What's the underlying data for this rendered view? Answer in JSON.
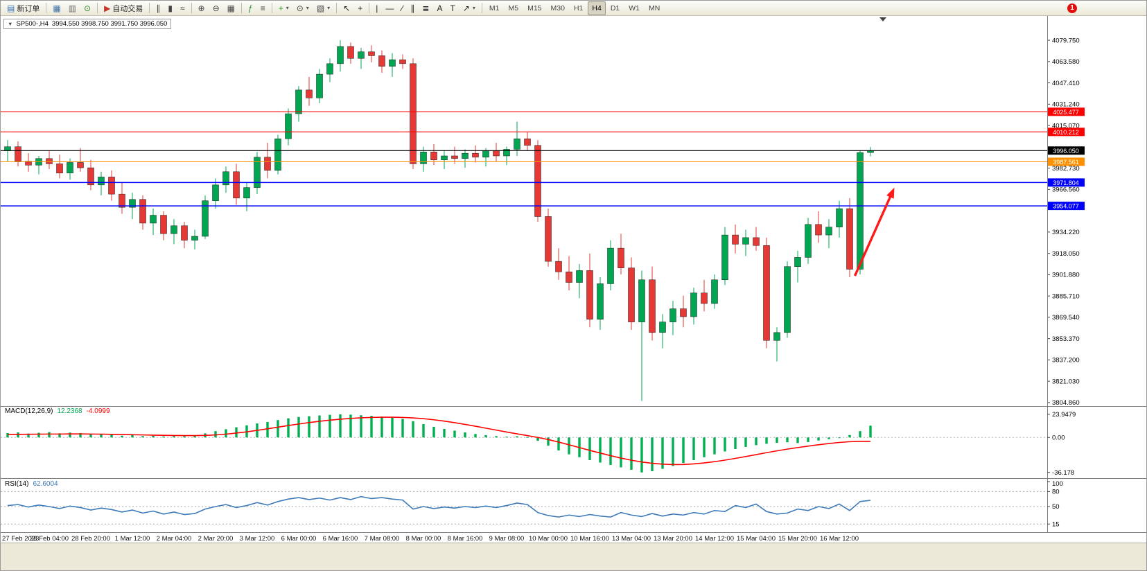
{
  "colors": {
    "bull": "#00a651",
    "bear": "#e53935",
    "macd_hist": "#00b050",
    "macd_signal": "#ff0000",
    "rsi_line": "#3d7ab8",
    "arrow": "#ff1a1a"
  },
  "toolbar": {
    "groups": [
      {
        "items": [
          {
            "name": "new-order-button",
            "glyph": "▤",
            "color": "#2f6fb0",
            "label": "新订单"
          }
        ]
      },
      {
        "items": [
          {
            "name": "charts-window-button",
            "glyph": "▦",
            "color": "#3a6ea5"
          },
          {
            "name": "data-window-button",
            "glyph": "▥",
            "color": "#6b6b6b"
          },
          {
            "name": "strategy-tester-button",
            "glyph": "⊙",
            "color": "#2d8a2d"
          }
        ]
      },
      {
        "items": [
          {
            "name": "autotrading-button",
            "glyph": "▶",
            "color": "#c0392b",
            "label": "自动交易"
          }
        ]
      },
      {
        "items": [
          {
            "name": "bar-chart-type-button",
            "glyph": "∥",
            "color": "#444444"
          },
          {
            "name": "candlestick-chart-type-button",
            "glyph": "▮",
            "color": "#444444"
          },
          {
            "name": "line-chart-type-button",
            "glyph": "≈",
            "color": "#444444"
          }
        ]
      },
      {
        "items": [
          {
            "name": "zoom-in-button",
            "glyph": "⊕",
            "color": "#444444"
          },
          {
            "name": "zoom-out-button",
            "glyph": "⊖",
            "color": "#444444"
          },
          {
            "name": "tile-windows-button",
            "glyph": "▦",
            "color": "#444444"
          }
        ]
      },
      {
        "items": [
          {
            "name": "indicators-button",
            "glyph": "ƒ",
            "color": "#2d8a2d"
          },
          {
            "name": "objects-list-button",
            "glyph": "≡",
            "color": "#444444"
          }
        ]
      },
      {
        "items": [
          {
            "name": "add-indicator-button",
            "glyph": "+",
            "color": "#1e9e1e",
            "caret": true
          },
          {
            "name": "periods-button",
            "glyph": "⊙",
            "color": "#444444",
            "caret": true
          },
          {
            "name": "templates-button",
            "glyph": "▧",
            "color": "#444444",
            "caret": true
          }
        ]
      },
      {
        "items": [
          {
            "name": "cursor-button",
            "glyph": "↖",
            "color": "#222222"
          },
          {
            "name": "crosshair-button",
            "glyph": "+",
            "color": "#222222"
          }
        ]
      },
      {
        "items": [
          {
            "name": "vertical-line-button",
            "glyph": "|",
            "color": "#222222"
          },
          {
            "name": "horizontal-line-button",
            "glyph": "—",
            "color": "#222222"
          },
          {
            "name": "trendline-button",
            "glyph": "∕",
            "color": "#222222"
          },
          {
            "name": "channel-button",
            "glyph": "∥",
            "color": "#222222"
          },
          {
            "name": "fibonacci-button",
            "glyph": "≣",
            "color": "#222222"
          },
          {
            "name": "text-button",
            "glyph": "A",
            "color": "#222222"
          },
          {
            "name": "label-button",
            "glyph": "T",
            "color": "#222222"
          },
          {
            "name": "arrows-button",
            "glyph": "↗",
            "color": "#222222",
            "caret": true
          }
        ]
      }
    ],
    "timeframes": [
      {
        "label": "M1"
      },
      {
        "label": "M5"
      },
      {
        "label": "M15"
      },
      {
        "label": "M30"
      },
      {
        "label": "H1"
      },
      {
        "label": "H4",
        "active": true
      },
      {
        "label": "D1"
      },
      {
        "label": "W1"
      },
      {
        "label": "MN"
      }
    ],
    "notification_count": "1"
  },
  "chart": {
    "expand_glyph": "▼",
    "symbol_title": "SP500-,H4",
    "ohlc_text": "3994.550 3998.750 3991.750 3996.050"
  },
  "indicators": {
    "macd": {
      "name": "MACD(12,26,9)",
      "value_main": "12.2368",
      "value_signal": "-4.0999"
    },
    "rsi": {
      "name": "RSI(14)",
      "value": "62.6004"
    }
  },
  "chart_data": [
    {
      "type": "candlestick",
      "symbol": "SP500-",
      "timeframe": "H4",
      "last_ohlc": {
        "open": 3994.55,
        "high": 3998.75,
        "low": 3991.75,
        "close": 3996.05
      },
      "y_ticks": [
        "4079.750",
        "4063.580",
        "4047.410",
        "4031.240",
        "4015.070",
        "3998.900",
        "3982.730",
        "3966.560",
        "3950.390",
        "3934.220",
        "3918.050",
        "3901.880",
        "3885.710",
        "3869.540",
        "3853.370",
        "3837.200",
        "3821.030",
        "3804.860"
      ],
      "x_labels": [
        "27 Feb 2023",
        "28 Feb 04:00",
        "28 Feb 20:00",
        "1 Mar 12:00",
        "2 Mar 04:00",
        "2 Mar 20:00",
        "3 Mar 12:00",
        "6 Mar 00:00",
        "6 Mar 16:00",
        "7 Mar 08:00",
        "8 Mar 00:00",
        "8 Mar 16:00",
        "9 Mar 08:00",
        "10 Mar 00:00",
        "10 Mar 16:00",
        "13 Mar 04:00",
        "13 Mar 20:00",
        "14 Mar 12:00",
        "15 Mar 04:00",
        "15 Mar 20:00",
        "16 Mar 12:00"
      ],
      "hlines": [
        {
          "price": 4025.477,
          "label": "4025.477",
          "color": "#ff0000"
        },
        {
          "price": 4010.212,
          "label": "4010.212",
          "color": "#ff0000"
        },
        {
          "price": 3996.05,
          "label": "3996.050",
          "color": "#000000"
        },
        {
          "price": 3987.561,
          "label": "3987.561",
          "color": "#ff9000"
        },
        {
          "price": 3971.804,
          "label": "3971.804",
          "color": "#0000ff"
        },
        {
          "price": 3954.077,
          "label": "3954.077",
          "color": "#0000ff"
        }
      ],
      "arrow": {
        "from_index": 81.5,
        "from_price": 3901,
        "to_index": 85.3,
        "to_price": 3968,
        "color": "#ff1a1a"
      },
      "shift_marker_index": 84.2,
      "candles": [
        [
          3996,
          4004,
          3988,
          3999
        ],
        [
          3999,
          4003,
          3984,
          3988
        ],
        [
          3988,
          3994,
          3980,
          3985
        ],
        [
          3985,
          3992,
          3978,
          3990
        ],
        [
          3990,
          3996,
          3982,
          3986
        ],
        [
          3986,
          3993,
          3975,
          3979
        ],
        [
          3979,
          3990,
          3974,
          3987
        ],
        [
          3987,
          3998,
          3980,
          3983
        ],
        [
          3983,
          3989,
          3966,
          3970
        ],
        [
          3970,
          3980,
          3962,
          3976
        ],
        [
          3976,
          3981,
          3958,
          3963
        ],
        [
          3963,
          3972,
          3948,
          3953
        ],
        [
          3953,
          3964,
          3944,
          3959
        ],
        [
          3959,
          3962,
          3936,
          3941
        ],
        [
          3941,
          3952,
          3932,
          3947
        ],
        [
          3947,
          3950,
          3928,
          3933
        ],
        [
          3933,
          3944,
          3925,
          3939
        ],
        [
          3939,
          3942,
          3922,
          3928
        ],
        [
          3928,
          3936,
          3921,
          3931
        ],
        [
          3931,
          3962,
          3929,
          3958
        ],
        [
          3958,
          3975,
          3952,
          3970
        ],
        [
          3970,
          3984,
          3964,
          3980
        ],
        [
          3980,
          3986,
          3955,
          3960
        ],
        [
          3960,
          3972,
          3950,
          3968
        ],
        [
          3968,
          3995,
          3963,
          3991
        ],
        [
          3991,
          4002,
          3975,
          3981
        ],
        [
          3981,
          4008,
          3978,
          4005
        ],
        [
          4005,
          4028,
          4000,
          4024
        ],
        [
          4024,
          4045,
          4018,
          4042
        ],
        [
          4042,
          4052,
          4030,
          4036
        ],
        [
          4036,
          4058,
          4032,
          4054
        ],
        [
          4054,
          4066,
          4048,
          4062
        ],
        [
          4062,
          4079.75,
          4056,
          4075
        ],
        [
          4075,
          4078,
          4062,
          4066
        ],
        [
          4066,
          4074,
          4058,
          4071
        ],
        [
          4071,
          4076,
          4063,
          4068
        ],
        [
          4068,
          4072,
          4055,
          4060
        ],
        [
          4060,
          4070,
          4052,
          4065
        ],
        [
          4065,
          4069,
          4058,
          4062
        ],
        [
          4062,
          4066,
          3982,
          3986
        ],
        [
          3986,
          3999,
          3980,
          3995
        ],
        [
          3995,
          4001,
          3985,
          3989
        ],
        [
          3989,
          3996,
          3982,
          3992
        ],
        [
          3992,
          3999,
          3986,
          3990
        ],
        [
          3990,
          3997,
          3983,
          3994
        ],
        [
          3994,
          4000,
          3987,
          3991
        ],
        [
          3991,
          3998,
          3984,
          3996
        ],
        [
          3996,
          4002,
          3988,
          3992
        ],
        [
          3992,
          3999,
          3985,
          3997
        ],
        [
          3997,
          4018,
          3992,
          4005
        ],
        [
          4005,
          4010,
          3996,
          4000
        ],
        [
          4000,
          4004,
          3942,
          3946
        ],
        [
          3946,
          3952,
          3908,
          3912
        ],
        [
          3912,
          3922,
          3898,
          3904
        ],
        [
          3904,
          3916,
          3890,
          3896
        ],
        [
          3896,
          3910,
          3884,
          3905
        ],
        [
          3905,
          3918,
          3862,
          3868
        ],
        [
          3868,
          3900,
          3860,
          3895
        ],
        [
          3895,
          3928,
          3890,
          3922
        ],
        [
          3922,
          3933,
          3902,
          3907
        ],
        [
          3907,
          3915,
          3860,
          3866
        ],
        [
          3866,
          3905,
          3806,
          3898
        ],
        [
          3898,
          3908,
          3852,
          3858
        ],
        [
          3858,
          3872,
          3846,
          3866
        ],
        [
          3866,
          3882,
          3856,
          3876
        ],
        [
          3876,
          3886,
          3862,
          3870
        ],
        [
          3870,
          3892,
          3864,
          3888
        ],
        [
          3888,
          3898,
          3874,
          3880
        ],
        [
          3880,
          3902,
          3876,
          3898
        ],
        [
          3898,
          3938,
          3894,
          3932
        ],
        [
          3932,
          3940,
          3918,
          3925
        ],
        [
          3925,
          3936,
          3916,
          3930
        ],
        [
          3930,
          3938,
          3920,
          3924
        ],
        [
          3924,
          3930,
          3846,
          3852
        ],
        [
          3852,
          3862,
          3836,
          3858
        ],
        [
          3858,
          3912,
          3854,
          3908
        ],
        [
          3908,
          3920,
          3896,
          3915
        ],
        [
          3915,
          3945,
          3910,
          3940
        ],
        [
          3940,
          3950,
          3926,
          3932
        ],
        [
          3932,
          3944,
          3922,
          3938
        ],
        [
          3938,
          3958,
          3930,
          3952
        ],
        [
          3952,
          3960,
          3900,
          3906
        ],
        [
          3906,
          3996,
          3902,
          3994.55
        ],
        [
          3994.55,
          3998.75,
          3991.75,
          3996.05
        ]
      ]
    },
    {
      "type": "bar",
      "name": "MACD(12,26,9)",
      "y_ticks": [
        "23.9479",
        "0.00",
        "-36.178"
      ],
      "histogram": [
        4.5,
        5.2,
        4.0,
        4.8,
        5.5,
        4.2,
        5.0,
        4.4,
        3.6,
        3.8,
        2.8,
        1.8,
        2.4,
        1.4,
        1.8,
        1.0,
        1.4,
        1.2,
        2.2,
        4.2,
        6.5,
        8.5,
        10.5,
        12.5,
        14.5,
        16.0,
        18.0,
        19.8,
        21.2,
        22.0,
        22.8,
        23.4,
        23.9,
        23.6,
        23.0,
        22.4,
        21.6,
        20.6,
        19.2,
        16.8,
        13.8,
        11.0,
        8.8,
        7.0,
        5.2,
        3.6,
        2.4,
        1.4,
        0.8,
        1.2,
        0.4,
        -3.5,
        -8.5,
        -13.5,
        -17.5,
        -20.5,
        -23.5,
        -26.0,
        -28.5,
        -31.0,
        -33.5,
        -36.2,
        -35.0,
        -32.5,
        -29.5,
        -26.5,
        -23.5,
        -20.5,
        -17.5,
        -14.5,
        -12.0,
        -9.8,
        -8.0,
        -6.6,
        -5.6,
        -5.0,
        -5.8,
        -4.8,
        -3.2,
        -1.8,
        -0.2,
        2.5,
        6.5,
        12.2
      ],
      "signal": [
        3.0,
        3.2,
        3.3,
        3.4,
        3.5,
        3.5,
        3.6,
        3.6,
        3.5,
        3.4,
        3.2,
        3.0,
        2.8,
        2.6,
        2.4,
        2.2,
        2.0,
        1.9,
        1.9,
        2.1,
        2.6,
        3.4,
        4.5,
        5.8,
        7.3,
        8.9,
        10.6,
        12.3,
        13.9,
        15.4,
        16.7,
        17.9,
        18.9,
        19.7,
        20.3,
        20.7,
        20.9,
        20.9,
        20.7,
        20.2,
        19.4,
        18.3,
        16.9,
        15.3,
        13.5,
        11.6,
        9.6,
        7.6,
        5.6,
        3.7,
        1.9,
        0.0,
        -2.2,
        -4.8,
        -7.6,
        -10.5,
        -13.4,
        -16.2,
        -18.9,
        -21.4,
        -23.6,
        -25.4,
        -26.8,
        -27.7,
        -28.1,
        -28.0,
        -27.4,
        -26.4,
        -25.1,
        -23.5,
        -21.7,
        -19.8,
        -17.8,
        -15.8,
        -13.9,
        -12.1,
        -10.5,
        -9.0,
        -7.6,
        -6.3,
        -5.2,
        -4.4,
        -4.1,
        -4.1
      ]
    },
    {
      "type": "line",
      "name": "RSI(14)",
      "y_ticks": [
        "100",
        "80",
        "50",
        "15"
      ],
      "levels": [
        80,
        50,
        15
      ],
      "values": [
        52,
        54,
        49,
        53,
        50,
        46,
        51,
        48,
        43,
        47,
        44,
        39,
        43,
        37,
        41,
        35,
        39,
        34,
        36,
        45,
        50,
        54,
        48,
        52,
        58,
        53,
        60,
        65,
        68,
        64,
        67,
        63,
        68,
        64,
        70,
        66,
        68,
        65,
        63,
        45,
        50,
        46,
        49,
        47,
        50,
        48,
        51,
        48,
        52,
        57,
        54,
        38,
        32,
        29,
        33,
        30,
        34,
        31,
        29,
        38,
        33,
        30,
        36,
        31,
        35,
        33,
        38,
        35,
        42,
        40,
        52,
        48,
        55,
        40,
        35,
        37,
        45,
        42,
        50,
        46,
        55,
        42,
        60,
        62.6
      ]
    }
  ]
}
